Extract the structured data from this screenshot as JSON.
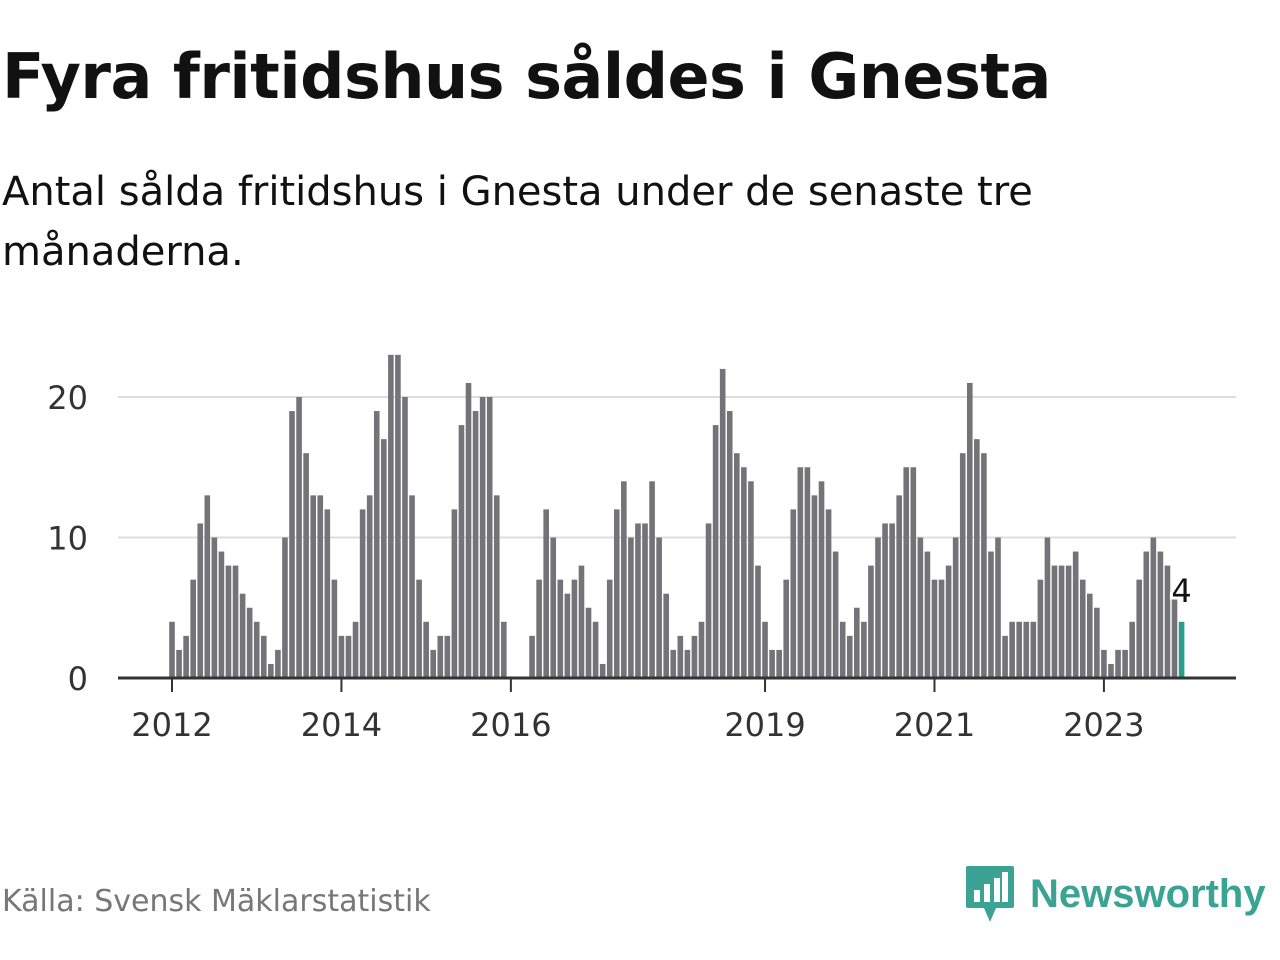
{
  "title": "Fyra fritidshus såldes i Gnesta",
  "subtitle": "Antal sålda fritidshus i Gnesta under de senaste tre månaderna.",
  "source": "Källa: Svensk Mäklarstatistik",
  "brand": "Newsworthy",
  "colors": {
    "bar": "#737378",
    "highlight": "#2a9d8f",
    "grid": "#dddddd",
    "axis": "#333333",
    "brand": "#3aa394"
  },
  "chart_data": {
    "type": "bar",
    "title": "Fyra fritidshus såldes i Gnesta",
    "subtitle": "Antal sålda fritidshus i Gnesta under de senaste tre månaderna.",
    "xlabel": "",
    "ylabel": "",
    "ylim": [
      0,
      24
    ],
    "yticks": [
      0,
      10,
      20
    ],
    "grid": true,
    "frequency": "monthly, rolling three-month total",
    "start": "2012-01",
    "highlight_last": true,
    "last_value_label": "4",
    "x_ticks": [
      {
        "label": "2012",
        "index": 0
      },
      {
        "label": "2014",
        "index": 24
      },
      {
        "label": "2016",
        "index": 48
      },
      {
        "label": "2019",
        "index": 84
      },
      {
        "label": "2021",
        "index": 108
      },
      {
        "label": "2023",
        "index": 132
      }
    ],
    "values": [
      4,
      2,
      3,
      7,
      11,
      13,
      10,
      9,
      8,
      8,
      6,
      5,
      4,
      3,
      1,
      2,
      10,
      19,
      20,
      16,
      13,
      13,
      12,
      7,
      3,
      3,
      4,
      12,
      13,
      19,
      17,
      23,
      23,
      20,
      13,
      7,
      4,
      2,
      3,
      3,
      12,
      18,
      21,
      19,
      20,
      20,
      13,
      4,
      0,
      0,
      0,
      3,
      7,
      12,
      10,
      7,
      6,
      7,
      8,
      5,
      4,
      1,
      7,
      12,
      14,
      10,
      11,
      11,
      14,
      10,
      6,
      2,
      3,
      2,
      3,
      4,
      11,
      18,
      22,
      19,
      16,
      15,
      14,
      8,
      4,
      2,
      2,
      7,
      12,
      15,
      15,
      13,
      14,
      12,
      9,
      4,
      3,
      5,
      4,
      8,
      10,
      11,
      11,
      13,
      15,
      15,
      10,
      9,
      7,
      7,
      8,
      10,
      16,
      21,
      17,
      16,
      9,
      10,
      3,
      4,
      4,
      4,
      4,
      7,
      10,
      8,
      8,
      8,
      9,
      7,
      6,
      5,
      2,
      1,
      2,
      2,
      4,
      7,
      9,
      10,
      9,
      8,
      6,
      4
    ]
  }
}
